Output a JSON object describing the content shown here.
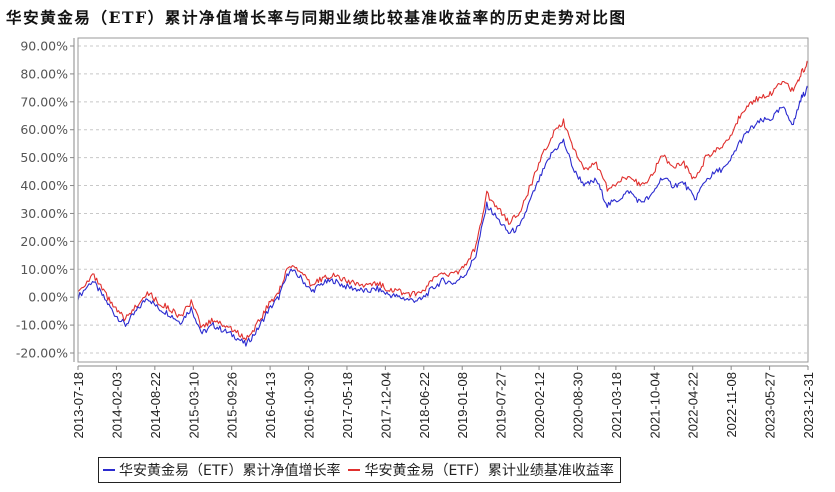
{
  "chart_data": {
    "type": "line",
    "title": "华安黄金易（ETF）累计净值增长率与同期业绩比较基准收益率的历史走势对比图",
    "xlabel": "",
    "ylabel": "",
    "ylim": [
      -0.2,
      0.9
    ],
    "y_ticks": [
      "90.00%",
      "80.00%",
      "70.00%",
      "60.00%",
      "50.00%",
      "40.00%",
      "30.00%",
      "20.00%",
      "10.00%",
      "0.00%",
      "-10.00%",
      "-20.00%"
    ],
    "y_tick_values": [
      0.9,
      0.8,
      0.7,
      0.6,
      0.5,
      0.4,
      0.3,
      0.2,
      0.1,
      0.0,
      -0.1,
      -0.2
    ],
    "x_ticks": [
      "2013-07-18",
      "2014-02-03",
      "2014-08-22",
      "2015-03-10",
      "2015-09-26",
      "2016-04-13",
      "2016-10-30",
      "2017-05-18",
      "2017-12-04",
      "2018-06-22",
      "2019-01-08",
      "2019-07-27",
      "2020-02-12",
      "2020-08-30",
      "2021-03-18",
      "2021-10-04",
      "2022-04-22",
      "2022-11-08",
      "2023-05-27",
      "2023-12-31"
    ],
    "grid": {
      "horizontal": true,
      "vertical": false,
      "style": "dashed"
    },
    "legend_position": "bottom",
    "colors": {
      "nav": "#2b2bcf",
      "benchmark": "#e0302e",
      "grid": "#c8c8c8",
      "axis": "#888888"
    },
    "x": [
      0.0,
      0.02,
      0.035,
      0.05,
      0.065,
      0.08,
      0.095,
      0.11,
      0.125,
      0.14,
      0.155,
      0.17,
      0.185,
      0.2,
      0.215,
      0.23,
      0.245,
      0.26,
      0.275,
      0.29,
      0.305,
      0.32,
      0.335,
      0.35,
      0.365,
      0.38,
      0.395,
      0.41,
      0.425,
      0.44,
      0.455,
      0.47,
      0.485,
      0.5,
      0.515,
      0.53,
      0.545,
      0.56,
      0.575,
      0.59,
      0.605,
      0.62,
      0.635,
      0.65,
      0.665,
      0.68,
      0.695,
      0.71,
      0.725,
      0.74,
      0.755,
      0.77,
      0.785,
      0.8,
      0.815,
      0.83,
      0.845,
      0.86,
      0.875,
      0.89,
      0.905,
      0.92,
      0.935,
      0.95,
      0.965,
      0.98,
      0.99,
      1.0
    ],
    "series": [
      {
        "name": "华安黄金易（ETF）累计净值增长率",
        "values": [
          0.0,
          0.06,
          0.0,
          -0.06,
          -0.1,
          -0.05,
          0.0,
          -0.04,
          -0.06,
          -0.09,
          -0.04,
          -0.13,
          -0.1,
          -0.12,
          -0.14,
          -0.17,
          -0.12,
          -0.05,
          0.0,
          0.1,
          0.07,
          0.02,
          0.05,
          0.06,
          0.04,
          0.03,
          0.02,
          0.03,
          0.01,
          0.0,
          -0.01,
          -0.01,
          0.03,
          0.06,
          0.05,
          0.08,
          0.15,
          0.33,
          0.28,
          0.23,
          0.25,
          0.35,
          0.44,
          0.52,
          0.56,
          0.45,
          0.4,
          0.42,
          0.33,
          0.35,
          0.38,
          0.34,
          0.36,
          0.43,
          0.4,
          0.41,
          0.35,
          0.42,
          0.45,
          0.47,
          0.55,
          0.6,
          0.63,
          0.64,
          0.68,
          0.62,
          0.71,
          0.75
        ]
      },
      {
        "name": "华安黄金易（ETF）累计业绩基准收益率",
        "values": [
          0.02,
          0.08,
          0.02,
          -0.04,
          -0.08,
          -0.03,
          0.02,
          -0.02,
          -0.04,
          -0.07,
          -0.02,
          -0.11,
          -0.08,
          -0.1,
          -0.12,
          -0.15,
          -0.1,
          -0.03,
          0.02,
          0.12,
          0.09,
          0.04,
          0.07,
          0.08,
          0.06,
          0.05,
          0.04,
          0.05,
          0.03,
          0.02,
          0.01,
          0.01,
          0.06,
          0.09,
          0.08,
          0.11,
          0.18,
          0.37,
          0.32,
          0.27,
          0.3,
          0.4,
          0.5,
          0.58,
          0.63,
          0.52,
          0.46,
          0.48,
          0.39,
          0.41,
          0.44,
          0.4,
          0.43,
          0.51,
          0.47,
          0.48,
          0.42,
          0.5,
          0.53,
          0.56,
          0.64,
          0.69,
          0.72,
          0.73,
          0.77,
          0.74,
          0.8,
          0.84
        ]
      }
    ]
  },
  "legend": {
    "items": [
      {
        "label": "华安黄金易（ETF）累计净值增长率",
        "color": "#2b2bcf"
      },
      {
        "label": "华安黄金易（ETF）累计业绩基准收益率",
        "color": "#e0302e"
      }
    ]
  }
}
